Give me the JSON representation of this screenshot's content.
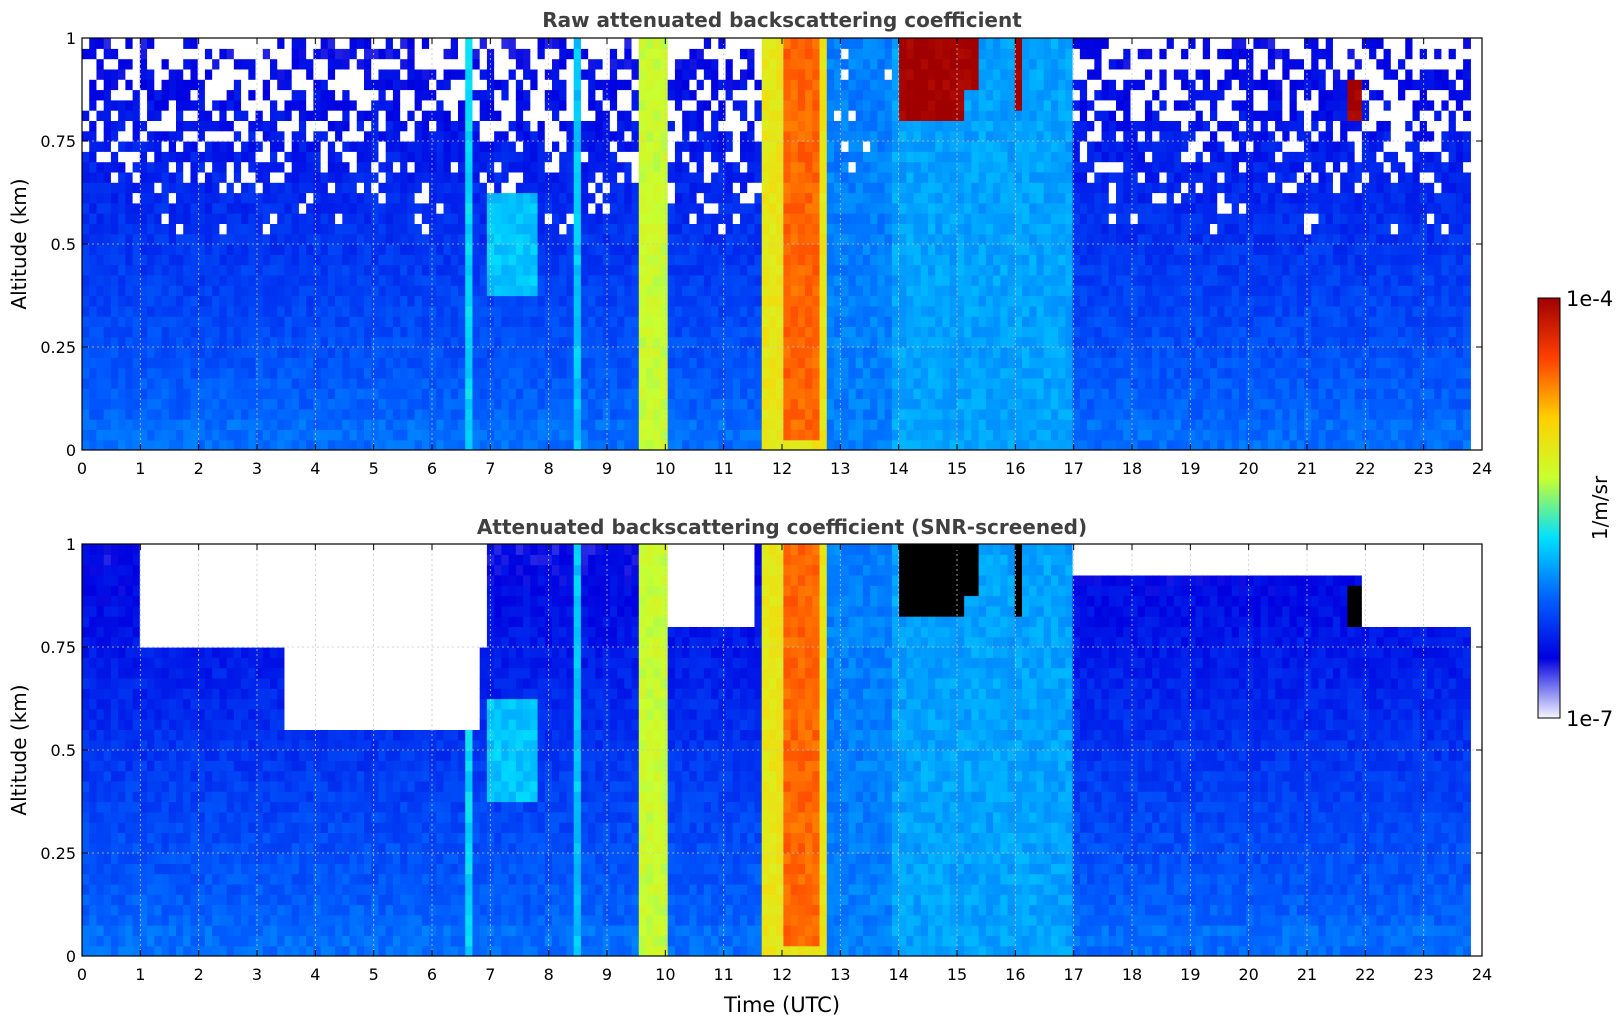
{
  "chart_data": [
    {
      "type": "heatmap",
      "title": "Raw attenuated backscattering coefficient",
      "xlabel": "",
      "ylabel": "Altitude (km)",
      "xlim": [
        0,
        24
      ],
      "ylim": [
        0,
        1
      ],
      "xticks": [
        "0",
        "1",
        "2",
        "3",
        "4",
        "5",
        "6",
        "7",
        "8",
        "9",
        "10",
        "11",
        "12",
        "13",
        "14",
        "15",
        "16",
        "17",
        "18",
        "19",
        "20",
        "21",
        "22",
        "23",
        "24"
      ],
      "yticks": [
        "0",
        "0.25",
        "0.5",
        "0.75",
        "1"
      ],
      "ytick_values": [
        0,
        0.25,
        0.5,
        0.75,
        1
      ],
      "grid": true,
      "data_end_time": 23.8,
      "features": [
        {
          "x": [
            0.0,
            24.0
          ],
          "y": [
            0.0,
            0.08
          ],
          "level": 0.3
        },
        {
          "x": [
            6.55,
            6.65
          ],
          "y": [
            0.0,
            1.0
          ],
          "level": 0.42
        },
        {
          "x": [
            7.0,
            7.8
          ],
          "y": [
            0.38,
            0.62
          ],
          "level": 0.4
        },
        {
          "x": [
            8.4,
            8.5
          ],
          "y": [
            0.0,
            1.0
          ],
          "level": 0.4
        },
        {
          "x": [
            9.6,
            10.0
          ],
          "y": [
            0.0,
            1.0
          ],
          "level": 0.58
        },
        {
          "x": [
            11.6,
            12.8
          ],
          "y": [
            0.0,
            1.0
          ],
          "level": 0.65
        },
        {
          "x": [
            12.0,
            12.6
          ],
          "y": [
            0.03,
            1.0
          ],
          "level": 0.82
        },
        {
          "x": [
            12.8,
            13.9
          ],
          "y": [
            0.0,
            1.0
          ],
          "level": 0.32
        },
        {
          "x": [
            13.9,
            17.0
          ],
          "y": [
            0.0,
            1.0
          ],
          "level": 0.36
        },
        {
          "x": [
            14.0,
            15.1
          ],
          "y": [
            0.8,
            1.0
          ],
          "level": 1.0
        },
        {
          "x": [
            15.0,
            15.4
          ],
          "y": [
            0.88,
            1.0
          ],
          "level": 1.0
        },
        {
          "x": [
            16.05,
            16.15
          ],
          "y": [
            0.82,
            1.0
          ],
          "level": 1.0
        },
        {
          "x": [
            21.75,
            22.0
          ],
          "y": [
            0.8,
            0.89
          ],
          "level": 1.0
        }
      ],
      "sparse_above_altitude": 0.5
    },
    {
      "type": "heatmap",
      "title": "Attenuated backscattering coefficient (SNR-screened)",
      "xlabel": "Time (UTC)",
      "ylabel": "Altitude (km)",
      "xlim": [
        0,
        24
      ],
      "ylim": [
        0,
        1
      ],
      "xticks": [
        "0",
        "1",
        "2",
        "3",
        "4",
        "5",
        "6",
        "7",
        "8",
        "9",
        "10",
        "11",
        "12",
        "13",
        "14",
        "15",
        "16",
        "17",
        "18",
        "19",
        "20",
        "21",
        "22",
        "23",
        "24"
      ],
      "yticks": [
        "0",
        "0.25",
        "0.5",
        "0.75",
        "1"
      ],
      "ytick_values": [
        0,
        0.25,
        0.5,
        0.75,
        1
      ],
      "grid": true,
      "data_end_time": 23.8,
      "features": [
        {
          "x": [
            0.0,
            24.0
          ],
          "y": [
            0.0,
            0.08
          ],
          "level": 0.3
        },
        {
          "x": [
            6.55,
            6.65
          ],
          "y": [
            0.0,
            1.0
          ],
          "level": 0.42
        },
        {
          "x": [
            7.0,
            7.8
          ],
          "y": [
            0.38,
            0.62
          ],
          "level": 0.4
        },
        {
          "x": [
            8.4,
            8.5
          ],
          "y": [
            0.0,
            1.0
          ],
          "level": 0.4
        },
        {
          "x": [
            9.6,
            10.0
          ],
          "y": [
            0.0,
            1.0
          ],
          "level": 0.58
        },
        {
          "x": [
            11.6,
            12.8
          ],
          "y": [
            0.0,
            1.0
          ],
          "level": 0.65
        },
        {
          "x": [
            12.0,
            12.6
          ],
          "y": [
            0.03,
            1.0
          ],
          "level": 0.82
        },
        {
          "x": [
            12.8,
            13.9
          ],
          "y": [
            0.0,
            1.0
          ],
          "level": 0.32
        },
        {
          "x": [
            13.9,
            17.0
          ],
          "y": [
            0.0,
            1.0
          ],
          "level": 0.36
        },
        {
          "x": [
            14.0,
            15.1
          ],
          "y": [
            0.82,
            1.0
          ],
          "level": 1.0
        },
        {
          "x": [
            15.0,
            15.4
          ],
          "y": [
            0.88,
            1.0
          ],
          "level": 1.0
        },
        {
          "x": [
            16.05,
            16.15
          ],
          "y": [
            0.82,
            1.0
          ],
          "level": 1.0
        },
        {
          "x": [
            21.75,
            22.0
          ],
          "y": [
            0.8,
            0.89
          ],
          "level": 1.0
        }
      ],
      "screened_out_regions": [
        {
          "x": [
            1.0,
            7.0
          ],
          "y": [
            0.75,
            1.0
          ]
        },
        {
          "x": [
            3.5,
            6.8
          ],
          "y": [
            0.55,
            0.75
          ]
        },
        {
          "x": [
            10.0,
            11.5
          ],
          "y": [
            0.8,
            1.0
          ]
        },
        {
          "x": [
            17.0,
            22.0
          ],
          "y": [
            0.93,
            1.0
          ]
        },
        {
          "x": [
            22.0,
            23.8
          ],
          "y": [
            0.8,
            1.0
          ]
        }
      ],
      "saturated_color": "#000000"
    }
  ],
  "colorbar": {
    "label": "1/m/sr",
    "max_label": "1e-4",
    "min_label": "1e-7",
    "scale": "log",
    "range": [
      1e-07,
      0.0001
    ],
    "colormap": [
      "#f5f5ff",
      "#0000e0",
      "#0060ff",
      "#00e0ff",
      "#c8ff30",
      "#ffd000",
      "#ff4000",
      "#a00000"
    ]
  }
}
